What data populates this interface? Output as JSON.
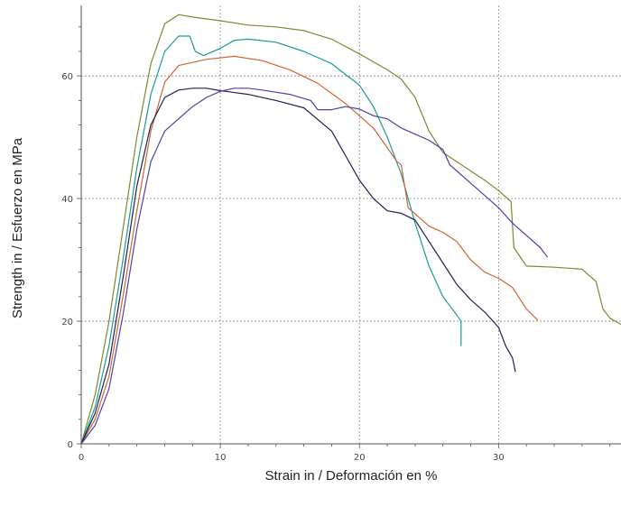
{
  "chart_data": {
    "type": "line",
    "title": "",
    "xlabel": "Strain in / Deformación en %",
    "ylabel": "Strength in / Esfuerzo en MPa",
    "xlim": [
      0,
      38.8
    ],
    "ylim": [
      0,
      71.5
    ],
    "xticks": [
      0,
      10,
      20,
      30
    ],
    "yticks": [
      0,
      20,
      40,
      60
    ],
    "grid": true,
    "legend": "none",
    "series": [
      {
        "color": "#7a8a2e",
        "points": [
          [
            0,
            0
          ],
          [
            1,
            8
          ],
          [
            2,
            20
          ],
          [
            3,
            35
          ],
          [
            4,
            50
          ],
          [
            5,
            62
          ],
          [
            6,
            68.5
          ],
          [
            7,
            70
          ],
          [
            8,
            69.6
          ],
          [
            10,
            69
          ],
          [
            12,
            68.3
          ],
          [
            14,
            68
          ],
          [
            16,
            67.4
          ],
          [
            18,
            66
          ],
          [
            20,
            63.6
          ],
          [
            22,
            61
          ],
          [
            23,
            59.5
          ],
          [
            24,
            56.5
          ],
          [
            25,
            51
          ],
          [
            26,
            47.5
          ],
          [
            27,
            46
          ],
          [
            28,
            44.5
          ],
          [
            29,
            43
          ],
          [
            30,
            41.3
          ],
          [
            30.9,
            39.5
          ],
          [
            31.1,
            32
          ],
          [
            32,
            29
          ],
          [
            34,
            28.8
          ],
          [
            36,
            28.5
          ],
          [
            37,
            26.5
          ],
          [
            37.5,
            22
          ],
          [
            38,
            20.5
          ],
          [
            38.8,
            19.5
          ]
        ]
      },
      {
        "color": "#1a9a96",
        "points": [
          [
            0,
            0
          ],
          [
            1,
            6
          ],
          [
            2,
            16
          ],
          [
            3,
            30
          ],
          [
            4,
            45
          ],
          [
            5,
            57
          ],
          [
            6,
            64
          ],
          [
            7,
            66.5
          ],
          [
            7.8,
            66.5
          ],
          [
            8.2,
            64
          ],
          [
            8.8,
            63.3
          ],
          [
            10,
            64.5
          ],
          [
            11,
            65.8
          ],
          [
            12,
            66
          ],
          [
            14,
            65.5
          ],
          [
            16,
            64
          ],
          [
            18,
            62
          ],
          [
            20,
            58.5
          ],
          [
            21,
            55
          ],
          [
            22,
            50
          ],
          [
            23,
            44
          ],
          [
            24,
            36
          ],
          [
            25,
            29
          ],
          [
            26,
            24
          ],
          [
            27,
            21
          ],
          [
            27.3,
            20
          ],
          [
            27.3,
            16
          ]
        ]
      },
      {
        "color": "#d26432",
        "points": [
          [
            0,
            0
          ],
          [
            1,
            4
          ],
          [
            2,
            11
          ],
          [
            3,
            24
          ],
          [
            4,
            38
          ],
          [
            5,
            51
          ],
          [
            6,
            59
          ],
          [
            7,
            61.7
          ],
          [
            9,
            62.7
          ],
          [
            11,
            63.2
          ],
          [
            13,
            62.5
          ],
          [
            15,
            61
          ],
          [
            17,
            58.8
          ],
          [
            19,
            55.5
          ],
          [
            21,
            51.5
          ],
          [
            22.7,
            46
          ],
          [
            23,
            45.5
          ],
          [
            23.5,
            38.5
          ],
          [
            25,
            35.5
          ],
          [
            26,
            34.5
          ],
          [
            27,
            33
          ],
          [
            28,
            30
          ],
          [
            29,
            28
          ],
          [
            30,
            27
          ],
          [
            31,
            25.5
          ],
          [
            32,
            22
          ],
          [
            32.8,
            20.2
          ]
        ]
      },
      {
        "color": "#202050",
        "points": [
          [
            0,
            0
          ],
          [
            1,
            5
          ],
          [
            2,
            13
          ],
          [
            3,
            27
          ],
          [
            4,
            42
          ],
          [
            5,
            52
          ],
          [
            6,
            56.5
          ],
          [
            7,
            57.7
          ],
          [
            8,
            58
          ],
          [
            9,
            58
          ],
          [
            10,
            57.6
          ],
          [
            12,
            57
          ],
          [
            14,
            56
          ],
          [
            16,
            54.8
          ],
          [
            18,
            51
          ],
          [
            19,
            47
          ],
          [
            20,
            43
          ],
          [
            21,
            40
          ],
          [
            22,
            38
          ],
          [
            23,
            37.6
          ],
          [
            24,
            36.5
          ],
          [
            25,
            33
          ],
          [
            26,
            29.5
          ],
          [
            27,
            26
          ],
          [
            28,
            23.5
          ],
          [
            29,
            21.5
          ],
          [
            30,
            19
          ],
          [
            30.5,
            16
          ],
          [
            31,
            14
          ],
          [
            31.2,
            11.8
          ]
        ]
      },
      {
        "color": "#4a42aa",
        "points": [
          [
            0,
            0
          ],
          [
            1,
            3
          ],
          [
            2,
            9
          ],
          [
            3,
            21
          ],
          [
            4,
            35
          ],
          [
            5,
            46
          ],
          [
            6,
            51
          ],
          [
            7,
            53
          ],
          [
            8,
            55
          ],
          [
            9,
            56.5
          ],
          [
            10,
            57.5
          ],
          [
            11,
            58
          ],
          [
            12,
            58
          ],
          [
            13,
            57.7
          ],
          [
            15,
            57
          ],
          [
            16.5,
            56
          ],
          [
            17,
            54.5
          ],
          [
            18,
            54.5
          ],
          [
            19,
            55
          ],
          [
            20,
            54.6
          ],
          [
            21,
            53.5
          ],
          [
            22,
            53
          ],
          [
            23,
            51.5
          ],
          [
            24,
            50.5
          ],
          [
            25,
            49.5
          ],
          [
            26,
            48
          ],
          [
            26.5,
            45.5
          ],
          [
            27,
            44.5
          ],
          [
            28,
            42.5
          ],
          [
            29,
            40.5
          ],
          [
            30,
            38.5
          ],
          [
            31,
            36
          ],
          [
            32,
            34
          ],
          [
            33,
            32
          ],
          [
            33.5,
            30.5
          ]
        ]
      }
    ]
  }
}
